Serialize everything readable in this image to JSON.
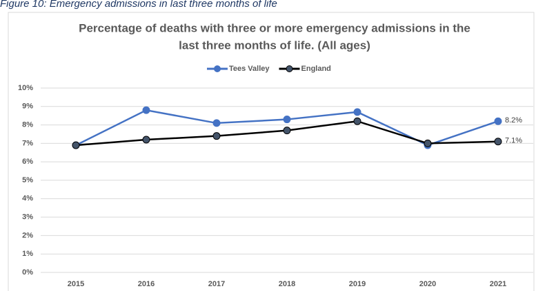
{
  "chart_data": {
    "type": "line",
    "caption": "Figure 10: Emergency admissions in last three months of life",
    "title": "Percentage of deaths with three or more emergency admissions in the",
    "subtitle": "last three months of life. (All ages)",
    "categories": [
      "2015",
      "2016",
      "2017",
      "2018",
      "2019",
      "2020",
      "2021"
    ],
    "series": [
      {
        "name": "Tees Valley",
        "color": "#4472c4",
        "values": [
          6.9,
          8.8,
          8.1,
          8.3,
          8.7,
          6.9,
          8.2
        ],
        "value_labels": [
          null,
          null,
          null,
          null,
          null,
          null,
          "8.2%"
        ]
      },
      {
        "name": "England",
        "color": "#000000",
        "values": [
          6.9,
          7.2,
          7.4,
          7.7,
          8.2,
          7.0,
          7.1
        ],
        "value_labels": [
          null,
          null,
          null,
          null,
          null,
          null,
          "7.1%"
        ]
      }
    ],
    "ylim": [
      0,
      10
    ],
    "yticks": [
      {
        "value": 0,
        "label": "0%"
      },
      {
        "value": 1,
        "label": "1%"
      },
      {
        "value": 2,
        "label": "2%"
      },
      {
        "value": 3,
        "label": "3%"
      },
      {
        "value": 4,
        "label": "4%"
      },
      {
        "value": 5,
        "label": "5%"
      },
      {
        "value": 6,
        "label": "6%"
      },
      {
        "value": 7,
        "label": "7%"
      },
      {
        "value": 8,
        "label": "8%"
      },
      {
        "value": 9,
        "label": "9%"
      },
      {
        "value": 10,
        "label": "10%"
      }
    ],
    "grid": true,
    "legend": "top"
  }
}
